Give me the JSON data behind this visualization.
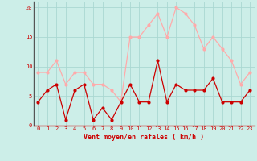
{
  "xlabel": "Vent moyen/en rafales ( km/h )",
  "background_color": "#cceee8",
  "grid_color": "#aad8d2",
  "x_values": [
    0,
    1,
    2,
    3,
    4,
    5,
    6,
    7,
    8,
    9,
    10,
    11,
    12,
    13,
    14,
    15,
    16,
    17,
    18,
    19,
    20,
    21,
    22,
    23
  ],
  "y_moyen": [
    4,
    6,
    7,
    1,
    6,
    7,
    1,
    3,
    1,
    4,
    7,
    4,
    4,
    11,
    4,
    7,
    6,
    6,
    6,
    8,
    4,
    4,
    4,
    6
  ],
  "y_rafales": [
    9,
    9,
    11,
    7,
    9,
    9,
    7,
    7,
    6,
    4,
    15,
    15,
    17,
    19,
    15,
    20,
    19,
    17,
    13,
    15,
    13,
    11,
    7,
    9
  ],
  "color_moyen": "#cc0000",
  "color_rafales": "#ffaaaa",
  "ylim": [
    0,
    21
  ],
  "yticks": [
    0,
    5,
    10,
    15,
    20
  ],
  "marker_size": 2.0,
  "line_width": 0.9,
  "font_color": "#cc0000",
  "tick_fontsize": 5.0,
  "xlabel_fontsize": 6.0
}
